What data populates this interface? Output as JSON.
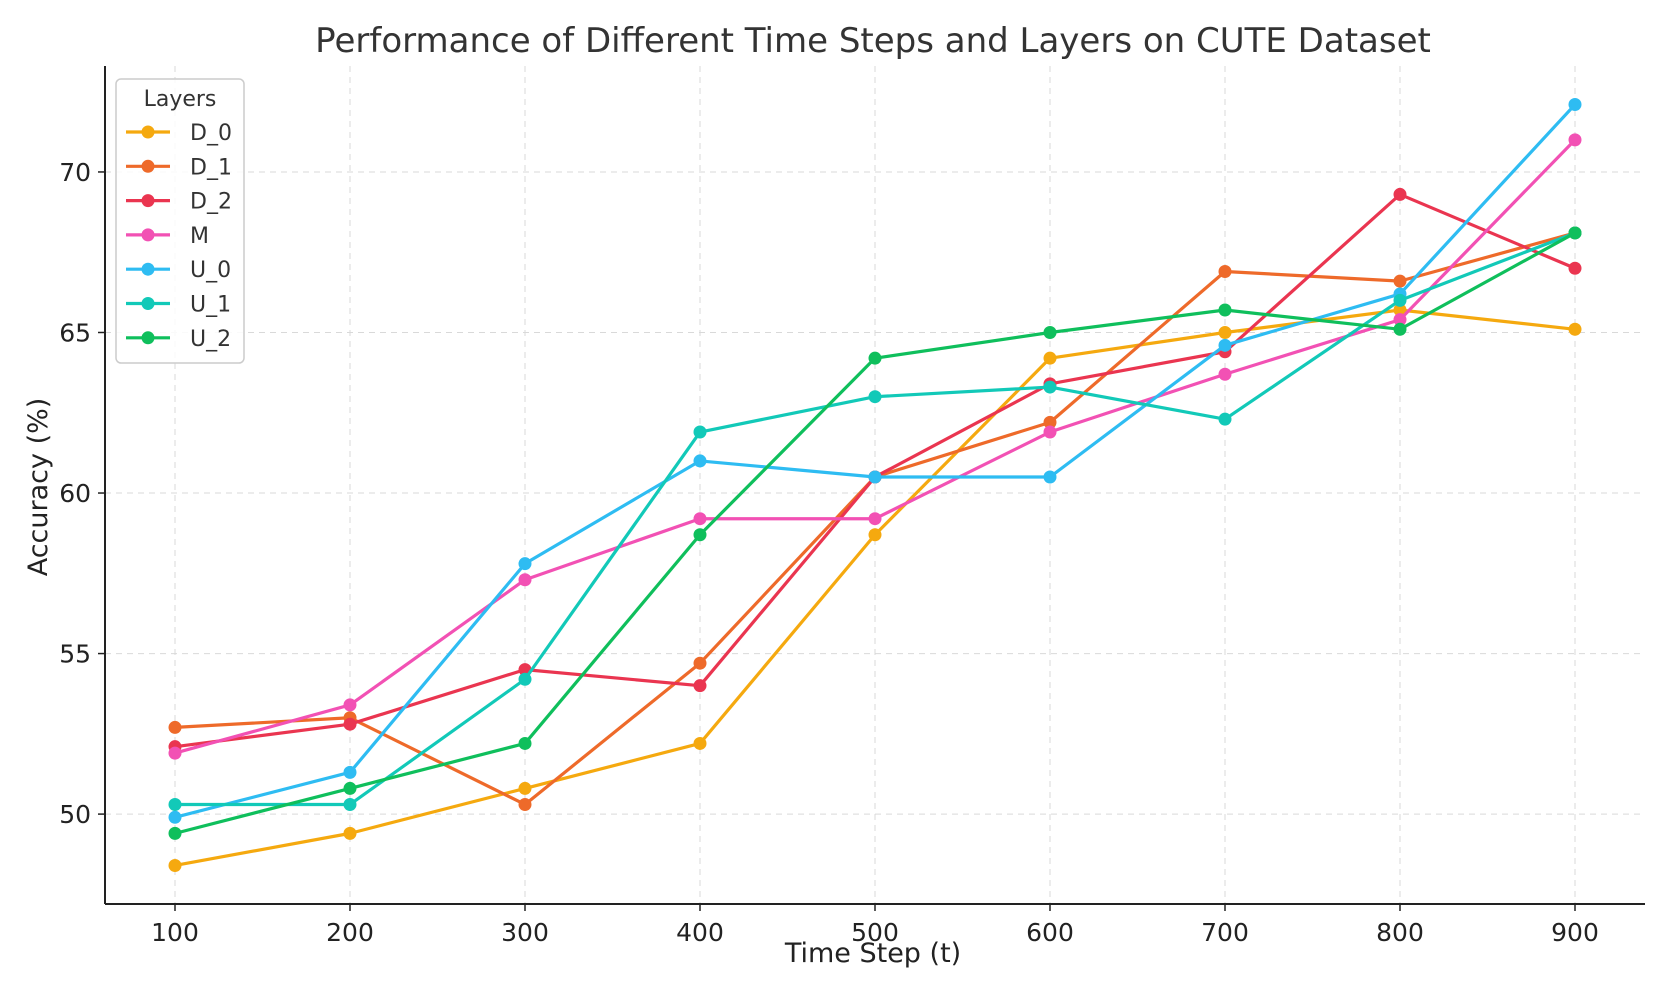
{
  "chart_data": {
    "type": "line",
    "title": "Performance of Different Time Steps and Layers on CUTE Dataset",
    "xlabel": "Time Step (t)",
    "ylabel": "Accuracy (%)",
    "x": [
      100,
      200,
      300,
      400,
      500,
      600,
      700,
      800,
      900
    ],
    "x_tick_labels": [
      "100",
      "200",
      "300",
      "400",
      "500",
      "600",
      "700",
      "800",
      "900"
    ],
    "y_ticks": [
      50,
      55,
      60,
      65,
      70
    ],
    "y_tick_labels": [
      "50",
      "55",
      "60",
      "65",
      "70"
    ],
    "xlim": [
      60,
      940
    ],
    "ylim": [
      47.2,
      73.3
    ],
    "grid": true,
    "legend_title": "Layers",
    "legend_position": "top-left",
    "series": [
      {
        "name": "D_0",
        "color": "#F5A90F",
        "values": [
          48.4,
          49.4,
          50.8,
          52.2,
          58.7,
          64.2,
          65.0,
          65.7,
          65.1
        ]
      },
      {
        "name": "D_1",
        "color": "#EE6A2A",
        "values": [
          52.7,
          53.0,
          50.3,
          54.7,
          60.5,
          62.2,
          66.9,
          66.6,
          68.1
        ]
      },
      {
        "name": "D_2",
        "color": "#EA3550",
        "values": [
          52.1,
          52.8,
          54.5,
          54.0,
          60.5,
          63.4,
          64.4,
          69.3,
          67.0
        ]
      },
      {
        "name": "M",
        "color": "#F251B4",
        "values": [
          51.9,
          53.4,
          57.3,
          59.2,
          59.2,
          61.9,
          63.7,
          65.4,
          71.0
        ]
      },
      {
        "name": "U_0",
        "color": "#2EBCF2",
        "values": [
          49.9,
          51.3,
          57.8,
          61.0,
          60.5,
          60.5,
          64.6,
          66.2,
          72.1
        ]
      },
      {
        "name": "U_1",
        "color": "#12C9B8",
        "values": [
          50.3,
          50.3,
          54.2,
          61.9,
          63.0,
          63.3,
          62.3,
          66.0,
          68.1
        ]
      },
      {
        "name": "U_2",
        "color": "#0FBF5C",
        "values": [
          49.4,
          50.8,
          52.2,
          58.7,
          64.2,
          65.0,
          65.7,
          65.1,
          68.1
        ]
      }
    ]
  }
}
